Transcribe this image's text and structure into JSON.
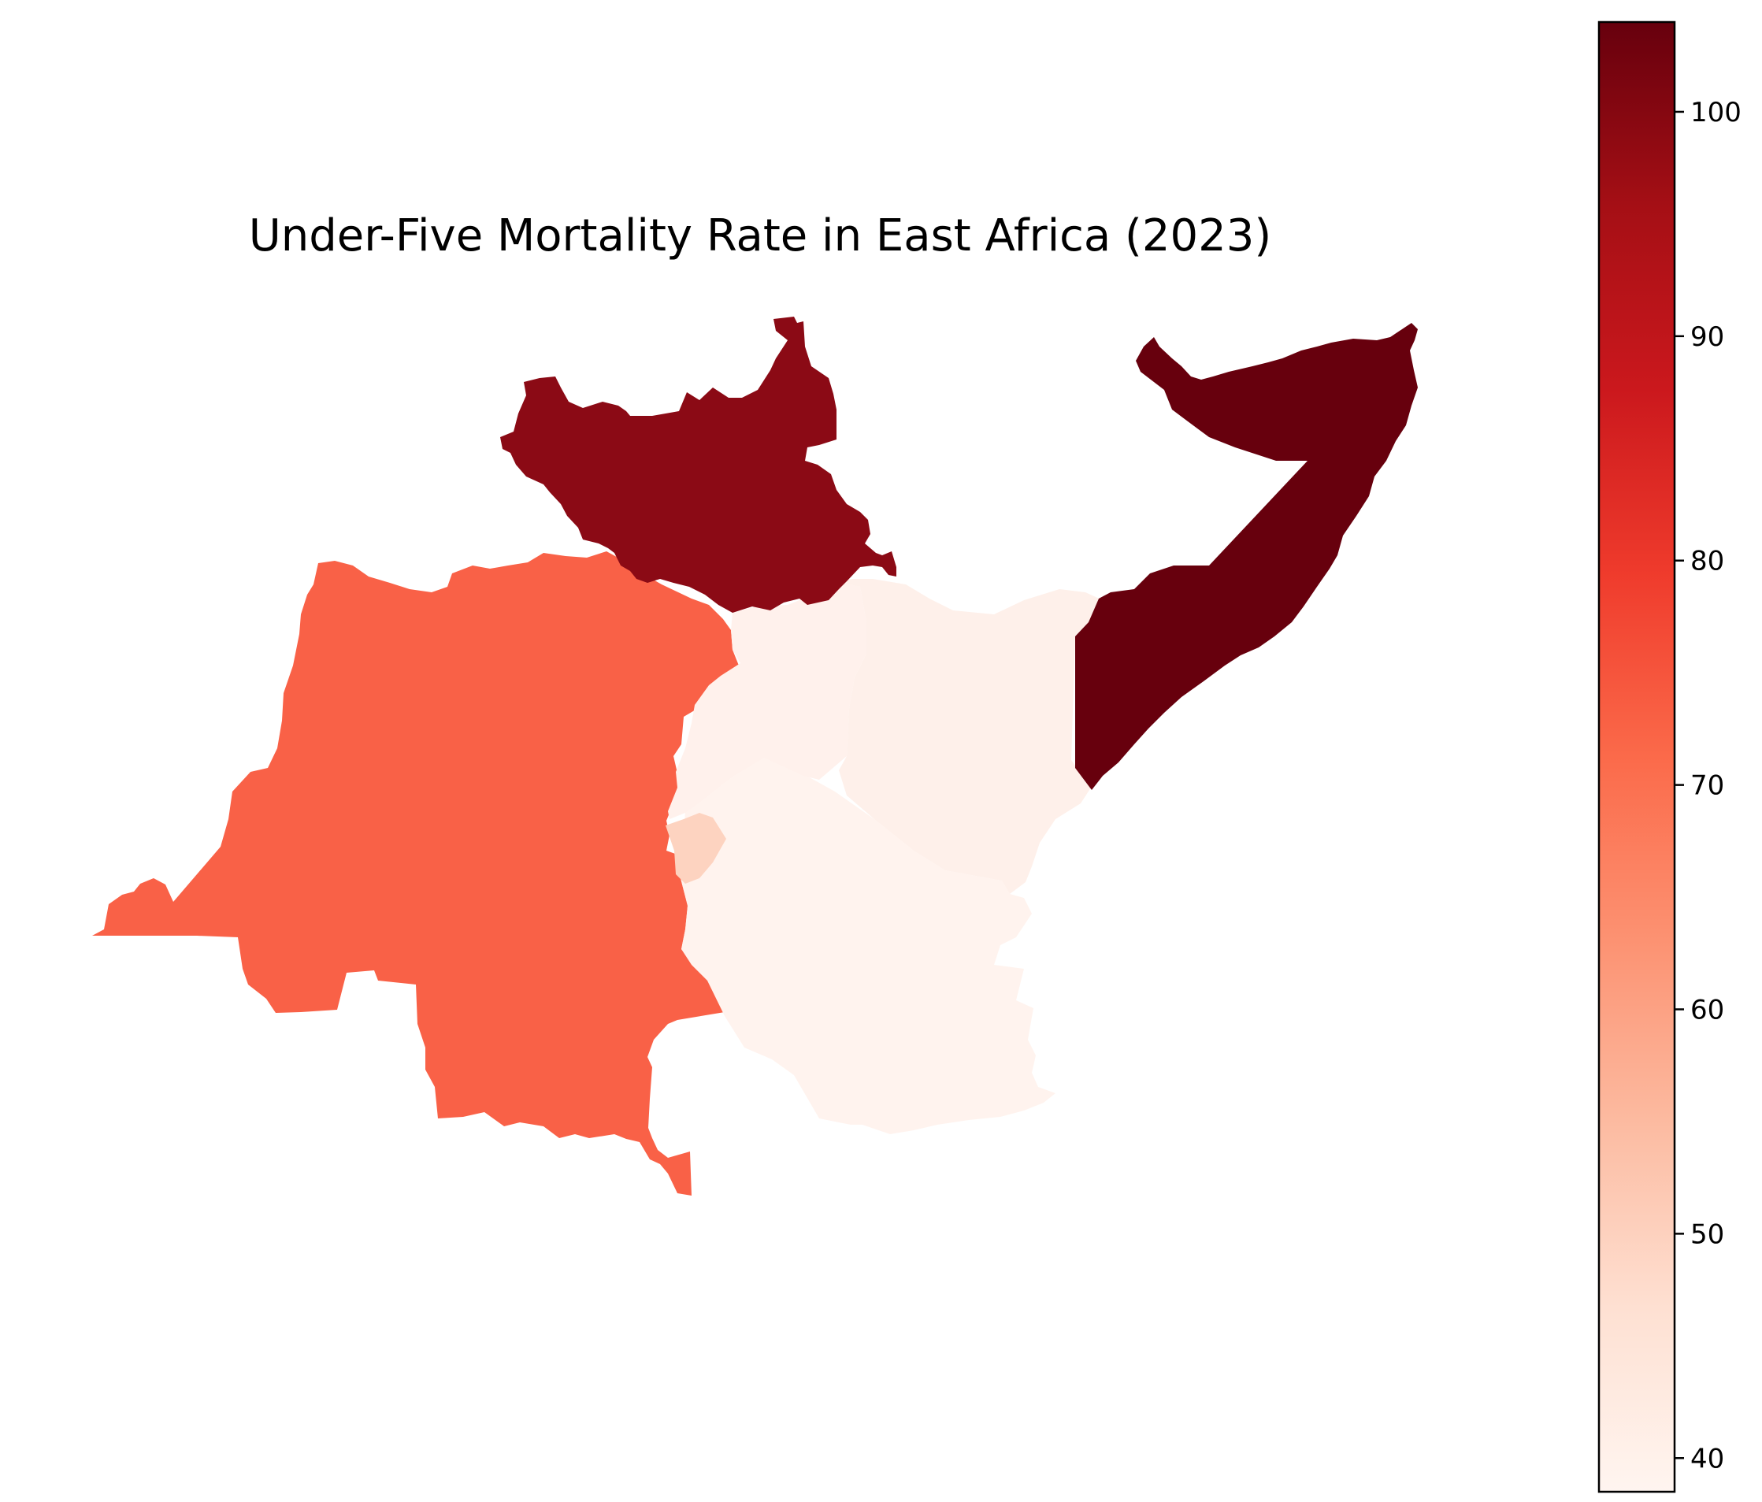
{
  "title": "Under-Five Mortality Rate in East Africa (2023)",
  "colorbar": {
    "min": 38.5,
    "max": 104,
    "ticks": [
      {
        "value": 40,
        "label": "40"
      },
      {
        "value": 50,
        "label": "50"
      },
      {
        "value": 60,
        "label": "60"
      },
      {
        "value": 70,
        "label": "70"
      },
      {
        "value": 80,
        "label": "80"
      },
      {
        "value": 90,
        "label": "90"
      },
      {
        "value": 100,
        "label": "100"
      }
    ],
    "colormap": [
      "#fff5f0",
      "#fee0d2",
      "#fcbba1",
      "#fc9272",
      "#fb6a4a",
      "#ef3b2c",
      "#cb181d",
      "#a50f15",
      "#67000d"
    ]
  },
  "regions": [
    {
      "id": "south-sudan",
      "fill": "#8b0a15"
    },
    {
      "id": "somalia",
      "fill": "#67000d"
    },
    {
      "id": "dr-congo",
      "fill": "#f96147"
    },
    {
      "id": "uganda",
      "fill": "#fff1ec"
    },
    {
      "id": "kenya",
      "fill": "#fef0ea"
    },
    {
      "id": "tanzania",
      "fill": "#fff3ee"
    },
    {
      "id": "rwanda-burundi",
      "fill": "#fdd3c0"
    }
  ]
}
